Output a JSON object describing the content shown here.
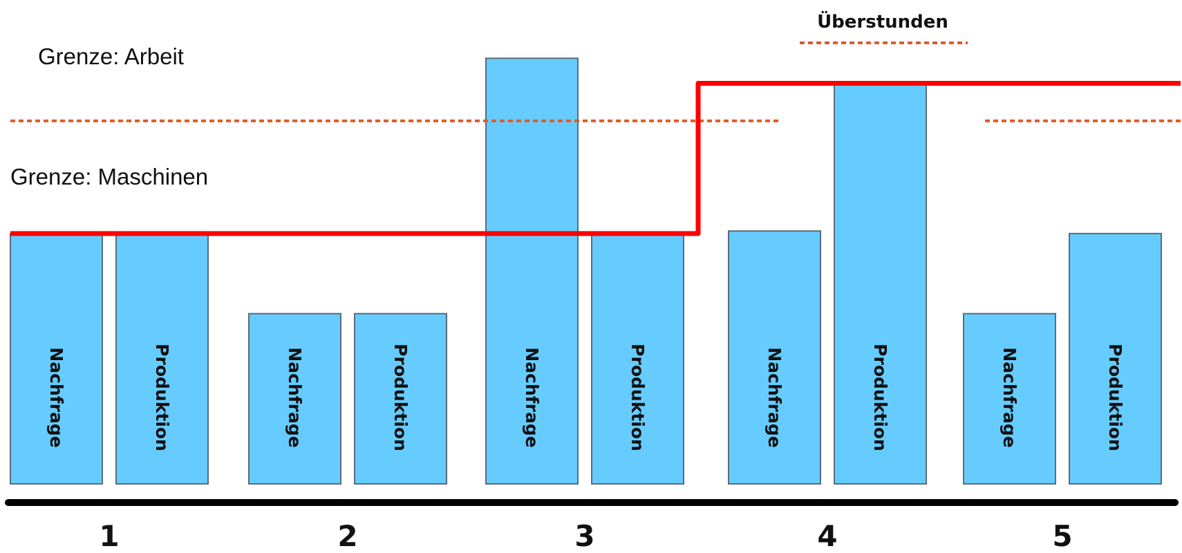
{
  "chart_data": {
    "type": "bar",
    "categories": [
      "1",
      "2",
      "3",
      "4",
      "5"
    ],
    "series": [
      {
        "name": "Nachfrage",
        "values": [
          100,
          68,
          170,
          101,
          68
        ]
      },
      {
        "name": "Produktion",
        "values": [
          100,
          68,
          100,
          160,
          100
        ]
      }
    ],
    "bar_labels": [
      "Nachfrage",
      "Produktion"
    ],
    "ylim": [
      0,
      185
    ],
    "limits": {
      "maschinen": {
        "label": "Grenze: Maschinen",
        "value": 100
      },
      "arbeit": {
        "label": "Grenze: Arbeit",
        "value": 145
      },
      "capacity_line": {
        "segments": [
          {
            "from_period": "1",
            "to_period": "3",
            "value": 100
          },
          {
            "from_period": "4",
            "to_period": "5",
            "value": 160
          }
        ]
      }
    },
    "overtime": {
      "label": "Überstunden"
    },
    "colors": {
      "bar_fill": "#66ccff",
      "capacity_line": "#ff0000",
      "limit_dotted": "#e05a2a",
      "axis": "#000000"
    }
  }
}
